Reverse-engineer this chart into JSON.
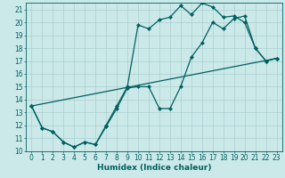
{
  "bg_color": "#cce9e9",
  "grid_color": "#aacece",
  "line_color": "#006060",
  "line_width": 0.9,
  "marker": "D",
  "marker_size": 2.0,
  "xlabel": "Humidex (Indice chaleur)",
  "xlabel_fontsize": 6.5,
  "tick_fontsize": 5.5,
  "xlim": [
    -0.5,
    23.5
  ],
  "ylim": [
    10,
    21.5
  ],
  "yticks": [
    10,
    11,
    12,
    13,
    14,
    15,
    16,
    17,
    18,
    19,
    20,
    21
  ],
  "xticks": [
    0,
    1,
    2,
    3,
    4,
    5,
    6,
    7,
    8,
    9,
    10,
    11,
    12,
    13,
    14,
    15,
    16,
    17,
    18,
    19,
    20,
    21,
    22,
    23
  ],
  "series1_x": [
    0,
    1,
    2,
    3,
    4,
    5,
    6,
    7,
    8,
    9,
    10,
    11,
    12,
    13,
    14,
    15,
    16,
    17,
    18,
    19,
    20,
    21,
    22,
    23
  ],
  "series1_y": [
    13.5,
    11.8,
    11.5,
    10.7,
    10.3,
    10.7,
    10.5,
    11.9,
    13.3,
    14.9,
    15.0,
    15.0,
    13.3,
    13.3,
    15.0,
    17.3,
    18.4,
    20.0,
    19.5,
    20.3,
    20.5,
    18.0,
    17.0,
    17.2
  ],
  "series2_x": [
    0,
    1,
    2,
    3,
    4,
    5,
    6,
    7,
    8,
    9,
    10,
    11,
    12,
    13,
    14,
    15,
    16,
    17,
    18,
    19,
    20,
    21,
    22,
    23
  ],
  "series2_y": [
    13.5,
    11.8,
    11.5,
    10.7,
    10.3,
    10.7,
    10.5,
    12.0,
    13.5,
    15.0,
    19.8,
    19.5,
    20.2,
    20.4,
    21.3,
    20.6,
    21.5,
    21.2,
    20.4,
    20.5,
    20.0,
    18.0,
    17.0,
    17.2
  ],
  "series3_x": [
    0,
    23
  ],
  "series3_y": [
    13.5,
    17.2
  ]
}
